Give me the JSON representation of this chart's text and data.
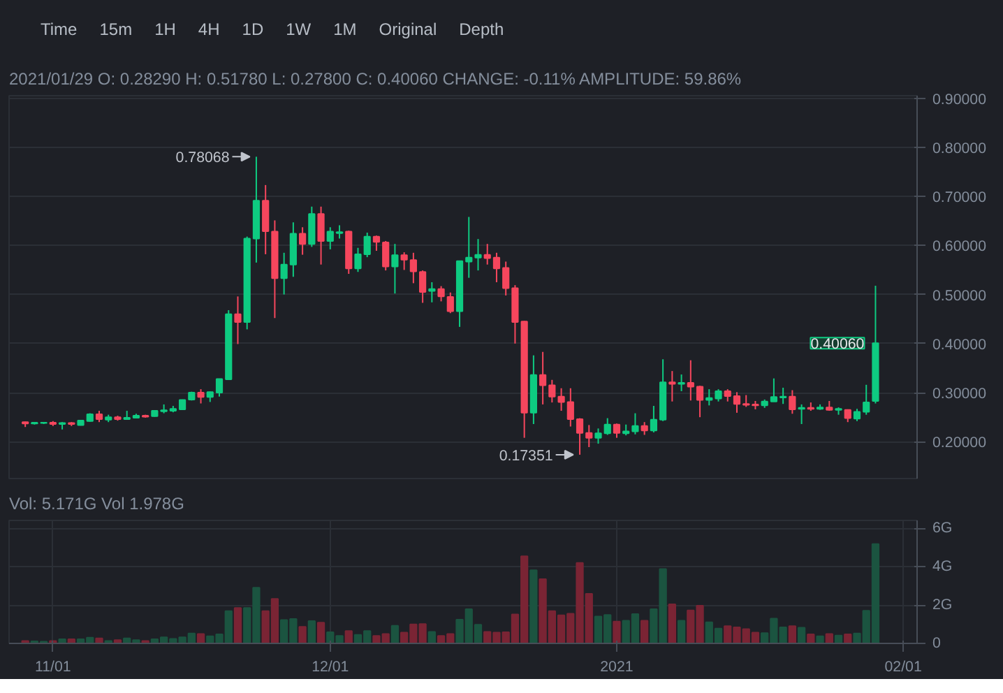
{
  "chart_data": [
    {
      "type": "candlestick",
      "subtitle": "2021/01/29 O: 0.28290 H: 0.51780 L: 0.27800 C: 0.40060 CHANGE: -0.11% AMPLITUDE: 59.86%",
      "annotations": [
        "Time",
        "15m",
        "1H",
        "4H",
        "1D",
        "1W",
        "1M",
        "Original",
        "Depth",
        {
          "text": "0.78068",
          "x": "2020-11-23",
          "y": 0.78068
        },
        {
          "text": "0.17351",
          "x": "2020-12-28",
          "y": 0.17351
        },
        {
          "text": "0.40060",
          "x": "2021-01-29",
          "y": 0.4006
        }
      ],
      "x": [
        "2020-10-29",
        "2020-10-30",
        "2020-10-31",
        "2020-11-01",
        "2020-11-02",
        "2020-11-03",
        "2020-11-04",
        "2020-11-05",
        "2020-11-06",
        "2020-11-07",
        "2020-11-08",
        "2020-11-09",
        "2020-11-10",
        "2020-11-11",
        "2020-11-12",
        "2020-11-13",
        "2020-11-14",
        "2020-11-15",
        "2020-11-16",
        "2020-11-17",
        "2020-11-18",
        "2020-11-19",
        "2020-11-20",
        "2020-11-21",
        "2020-11-22",
        "2020-11-23",
        "2020-11-24",
        "2020-11-25",
        "2020-11-26",
        "2020-11-27",
        "2020-11-28",
        "2020-11-29",
        "2020-11-30",
        "2020-12-01",
        "2020-12-02",
        "2020-12-03",
        "2020-12-04",
        "2020-12-05",
        "2020-12-06",
        "2020-12-07",
        "2020-12-08",
        "2020-12-09",
        "2020-12-10",
        "2020-12-11",
        "2020-12-12",
        "2020-12-13",
        "2020-12-14",
        "2020-12-15",
        "2020-12-16",
        "2020-12-17",
        "2020-12-18",
        "2020-12-19",
        "2020-12-20",
        "2020-12-21",
        "2020-12-22",
        "2020-12-23",
        "2020-12-24",
        "2020-12-25",
        "2020-12-26",
        "2020-12-27",
        "2020-12-28",
        "2020-12-29",
        "2020-12-30",
        "2020-12-31",
        "2021-01-01",
        "2021-01-02",
        "2021-01-03",
        "2021-01-04",
        "2021-01-05",
        "2021-01-06",
        "2021-01-07",
        "2021-01-08",
        "2021-01-09",
        "2021-01-10",
        "2021-01-11",
        "2021-01-12",
        "2021-01-13",
        "2021-01-14",
        "2021-01-15",
        "2021-01-16",
        "2021-01-17",
        "2021-01-18",
        "2021-01-19",
        "2021-01-20",
        "2021-01-21",
        "2021-01-22",
        "2021-01-23",
        "2021-01-24",
        "2021-01-25",
        "2021-01-26",
        "2021-01-27",
        "2021-01-28",
        "2021-01-29"
      ],
      "ohlc": [
        [
          0.24,
          0.241,
          0.23,
          0.237
        ],
        [
          0.237,
          0.24,
          0.235,
          0.239
        ],
        [
          0.238,
          0.24,
          0.236,
          0.239
        ],
        [
          0.239,
          0.242,
          0.232,
          0.236
        ],
        [
          0.236,
          0.24,
          0.225,
          0.238
        ],
        [
          0.238,
          0.24,
          0.232,
          0.236
        ],
        [
          0.234,
          0.243,
          0.233,
          0.243
        ],
        [
          0.242,
          0.258,
          0.241,
          0.256
        ],
        [
          0.256,
          0.263,
          0.24,
          0.246
        ],
        [
          0.245,
          0.255,
          0.24,
          0.25
        ],
        [
          0.25,
          0.253,
          0.243,
          0.246
        ],
        [
          0.246,
          0.263,
          0.245,
          0.249
        ],
        [
          0.249,
          0.257,
          0.248,
          0.253
        ],
        [
          0.253,
          0.255,
          0.249,
          0.251
        ],
        [
          0.252,
          0.263,
          0.251,
          0.263
        ],
        [
          0.262,
          0.276,
          0.258,
          0.264
        ],
        [
          0.263,
          0.273,
          0.26,
          0.267
        ],
        [
          0.266,
          0.286,
          0.265,
          0.285
        ],
        [
          0.286,
          0.302,
          0.284,
          0.3
        ],
        [
          0.3,
          0.307,
          0.278,
          0.291
        ],
        [
          0.291,
          0.302,
          0.281,
          0.301
        ],
        [
          0.3,
          0.328,
          0.292,
          0.328
        ],
        [
          0.327,
          0.468,
          0.326,
          0.46
        ],
        [
          0.46,
          0.496,
          0.399,
          0.444
        ],
        [
          0.444,
          0.618,
          0.429,
          0.614
        ],
        [
          0.614,
          0.78068,
          0.565,
          0.691
        ],
        [
          0.691,
          0.723,
          0.582,
          0.629
        ],
        [
          0.628,
          0.651,
          0.452,
          0.533
        ],
        [
          0.533,
          0.585,
          0.5,
          0.561
        ],
        [
          0.561,
          0.647,
          0.536,
          0.624
        ],
        [
          0.624,
          0.637,
          0.581,
          0.603
        ],
        [
          0.603,
          0.679,
          0.597,
          0.664
        ],
        [
          0.664,
          0.679,
          0.561,
          0.609
        ],
        [
          0.609,
          0.637,
          0.592,
          0.628
        ],
        [
          0.625,
          0.641,
          0.614,
          0.627
        ],
        [
          0.628,
          0.63,
          0.542,
          0.553
        ],
        [
          0.553,
          0.595,
          0.546,
          0.582
        ],
        [
          0.582,
          0.626,
          0.576,
          0.618
        ],
        [
          0.618,
          0.62,
          0.589,
          0.607
        ],
        [
          0.606,
          0.609,
          0.549,
          0.557
        ],
        [
          0.557,
          0.603,
          0.502,
          0.58
        ],
        [
          0.58,
          0.586,
          0.55,
          0.571
        ],
        [
          0.57,
          0.585,
          0.523,
          0.547
        ],
        [
          0.546,
          0.549,
          0.483,
          0.505
        ],
        [
          0.507,
          0.525,
          0.484,
          0.511
        ],
        [
          0.511,
          0.517,
          0.486,
          0.496
        ],
        [
          0.495,
          0.504,
          0.462,
          0.466
        ],
        [
          0.466,
          0.568,
          0.434,
          0.568
        ],
        [
          0.567,
          0.658,
          0.534,
          0.575
        ],
        [
          0.575,
          0.613,
          0.549,
          0.581
        ],
        [
          0.581,
          0.603,
          0.561,
          0.574
        ],
        [
          0.575,
          0.585,
          0.525,
          0.553
        ],
        [
          0.554,
          0.567,
          0.498,
          0.513
        ],
        [
          0.513,
          0.519,
          0.4,
          0.444
        ],
        [
          0.445,
          0.446,
          0.208,
          0.259
        ],
        [
          0.259,
          0.376,
          0.236,
          0.336
        ],
        [
          0.336,
          0.383,
          0.276,
          0.315
        ],
        [
          0.315,
          0.326,
          0.28,
          0.292
        ],
        [
          0.292,
          0.309,
          0.263,
          0.281
        ],
        [
          0.281,
          0.309,
          0.231,
          0.246
        ],
        [
          0.246,
          0.248,
          0.17351,
          0.218
        ],
        [
          0.218,
          0.234,
          0.189,
          0.208
        ],
        [
          0.208,
          0.227,
          0.196,
          0.217
        ],
        [
          0.217,
          0.248,
          0.214,
          0.235
        ],
        [
          0.235,
          0.237,
          0.208,
          0.218
        ],
        [
          0.217,
          0.235,
          0.213,
          0.221
        ],
        [
          0.221,
          0.258,
          0.215,
          0.232
        ],
        [
          0.232,
          0.24,
          0.214,
          0.223
        ],
        [
          0.223,
          0.273,
          0.219,
          0.245
        ],
        [
          0.245,
          0.368,
          0.242,
          0.321
        ],
        [
          0.321,
          0.344,
          0.282,
          0.318
        ],
        [
          0.318,
          0.337,
          0.303,
          0.32
        ],
        [
          0.32,
          0.366,
          0.284,
          0.312
        ],
        [
          0.312,
          0.314,
          0.25,
          0.285
        ],
        [
          0.285,
          0.307,
          0.274,
          0.289
        ],
        [
          0.288,
          0.307,
          0.282,
          0.303
        ],
        [
          0.303,
          0.307,
          0.282,
          0.293
        ],
        [
          0.293,
          0.301,
          0.259,
          0.277
        ],
        [
          0.277,
          0.295,
          0.271,
          0.275
        ],
        [
          0.276,
          0.283,
          0.266,
          0.274
        ],
        [
          0.274,
          0.286,
          0.269,
          0.282
        ],
        [
          0.282,
          0.329,
          0.282,
          0.291
        ],
        [
          0.29,
          0.31,
          0.277,
          0.292
        ],
        [
          0.292,
          0.305,
          0.257,
          0.266
        ],
        [
          0.267,
          0.276,
          0.236,
          0.269
        ],
        [
          0.269,
          0.28,
          0.263,
          0.267
        ],
        [
          0.267,
          0.276,
          0.265,
          0.27
        ],
        [
          0.27,
          0.283,
          0.263,
          0.265
        ],
        [
          0.265,
          0.27,
          0.255,
          0.267
        ],
        [
          0.265,
          0.266,
          0.24,
          0.248
        ],
        [
          0.247,
          0.267,
          0.242,
          0.261
        ],
        [
          0.261,
          0.316,
          0.255,
          0.28
        ],
        [
          0.2829,
          0.5178,
          0.278,
          0.4006
        ]
      ],
      "colors": [
        "#f6465d",
        "#0ecb81",
        "#0ecb81",
        "#f6465d",
        "#0ecb81",
        "#f6465d",
        "#0ecb81",
        "#0ecb81",
        "#f6465d",
        "#0ecb81",
        "#f6465d",
        "#0ecb81",
        "#0ecb81",
        "#f6465d",
        "#0ecb81",
        "#0ecb81",
        "#0ecb81",
        "#0ecb81",
        "#0ecb81",
        "#f6465d",
        "#0ecb81",
        "#0ecb81",
        "#0ecb81",
        "#f6465d",
        "#0ecb81",
        "#0ecb81",
        "#f6465d",
        "#f6465d",
        "#0ecb81",
        "#0ecb81",
        "#f6465d",
        "#0ecb81",
        "#f6465d",
        "#0ecb81",
        "#0ecb81",
        "#f6465d",
        "#0ecb81",
        "#0ecb81",
        "#f6465d",
        "#f6465d",
        "#0ecb81",
        "#f6465d",
        "#f6465d",
        "#f6465d",
        "#0ecb81",
        "#f6465d",
        "#f6465d",
        "#0ecb81",
        "#0ecb81",
        "#0ecb81",
        "#f6465d",
        "#f6465d",
        "#f6465d",
        "#f6465d",
        "#f6465d",
        "#0ecb81",
        "#f6465d",
        "#f6465d",
        "#f6465d",
        "#f6465d",
        "#f6465d",
        "#f6465d",
        "#0ecb81",
        "#0ecb81",
        "#f6465d",
        "#0ecb81",
        "#0ecb81",
        "#f6465d",
        "#0ecb81",
        "#0ecb81",
        "#f6465d",
        "#0ecb81",
        "#f6465d",
        "#f6465d",
        "#0ecb81",
        "#0ecb81",
        "#f6465d",
        "#f6465d",
        "#f6465d",
        "#f6465d",
        "#0ecb81",
        "#0ecb81",
        "#0ecb81",
        "#f6465d",
        "#0ecb81",
        "#f6465d",
        "#0ecb81",
        "#f6465d",
        "#0ecb81",
        "#f6465d",
        "#0ecb81",
        "#0ecb81",
        "#0ecb81"
      ],
      "xlim": [
        "2020-10-27T06:00",
        "2021-02-02T12:00"
      ],
      "ylim": [
        0.125,
        0.905
      ],
      "yticks": [
        {
          "value": 0.2,
          "label": "0.20000"
        },
        {
          "value": 0.3,
          "label": "0.30000"
        },
        {
          "value": 0.4,
          "label": "0.40000"
        },
        {
          "value": 0.5,
          "label": "0.50000"
        },
        {
          "value": 0.6,
          "label": "0.60000"
        },
        {
          "value": 0.7,
          "label": "0.70000"
        },
        {
          "value": 0.8,
          "label": "0.80000"
        },
        {
          "value": 0.9,
          "label": "0.90000"
        }
      ],
      "grid": true,
      "tick_labels": "y"
    },
    {
      "type": "bar",
      "title": "Vol: 5.171G  Vol 1.978G",
      "x": [
        "2020-10-29",
        "2020-10-30",
        "2020-10-31",
        "2020-11-01",
        "2020-11-02",
        "2020-11-03",
        "2020-11-04",
        "2020-11-05",
        "2020-11-06",
        "2020-11-07",
        "2020-11-08",
        "2020-11-09",
        "2020-11-10",
        "2020-11-11",
        "2020-11-12",
        "2020-11-13",
        "2020-11-14",
        "2020-11-15",
        "2020-11-16",
        "2020-11-17",
        "2020-11-18",
        "2020-11-19",
        "2020-11-20",
        "2020-11-21",
        "2020-11-22",
        "2020-11-23",
        "2020-11-24",
        "2020-11-25",
        "2020-11-26",
        "2020-11-27",
        "2020-11-28",
        "2020-11-29",
        "2020-11-30",
        "2020-12-01",
        "2020-12-02",
        "2020-12-03",
        "2020-12-04",
        "2020-12-05",
        "2020-12-06",
        "2020-12-07",
        "2020-12-08",
        "2020-12-09",
        "2020-12-10",
        "2020-12-11",
        "2020-12-12",
        "2020-12-13",
        "2020-12-14",
        "2020-12-15",
        "2020-12-16",
        "2020-12-17",
        "2020-12-18",
        "2020-12-19",
        "2020-12-20",
        "2020-12-21",
        "2020-12-22",
        "2020-12-23",
        "2020-12-24",
        "2020-12-25",
        "2020-12-26",
        "2020-12-27",
        "2020-12-28",
        "2020-12-29",
        "2020-12-30",
        "2020-12-31",
        "2021-01-01",
        "2021-01-02",
        "2021-01-03",
        "2021-01-04",
        "2021-01-05",
        "2021-01-06",
        "2021-01-07",
        "2021-01-08",
        "2021-01-09",
        "2021-01-10",
        "2021-01-11",
        "2021-01-12",
        "2021-01-13",
        "2021-01-14",
        "2021-01-15",
        "2021-01-16",
        "2021-01-17",
        "2021-01-18",
        "2021-01-19",
        "2021-01-20",
        "2021-01-21",
        "2021-01-22",
        "2021-01-23",
        "2021-01-24",
        "2021-01-25",
        "2021-01-26",
        "2021-01-27",
        "2021-01-28",
        "2021-01-29"
      ],
      "values": [
        0.13,
        0.11,
        0.09,
        0.13,
        0.22,
        0.22,
        0.22,
        0.3,
        0.26,
        0.13,
        0.17,
        0.26,
        0.17,
        0.13,
        0.22,
        0.32,
        0.24,
        0.32,
        0.52,
        0.49,
        0.37,
        0.47,
        1.68,
        1.85,
        1.85,
        2.9,
        1.68,
        2.32,
        1.22,
        1.27,
        0.86,
        1.16,
        1.08,
        0.58,
        0.39,
        0.65,
        0.45,
        0.65,
        0.39,
        0.49,
        0.92,
        0.56,
        0.99,
        1.01,
        0.6,
        0.39,
        0.49,
        1.24,
        1.78,
        0.97,
        0.6,
        0.56,
        0.58,
        1.51,
        4.54,
        3.81,
        3.35,
        1.68,
        1.46,
        1.55,
        4.19,
        2.58,
        1.4,
        1.48,
        1.14,
        1.18,
        1.53,
        1.18,
        1.78,
        3.87,
        2.04,
        1.18,
        1.72,
        1.96,
        1.1,
        0.77,
        0.9,
        0.84,
        0.75,
        0.56,
        0.54,
        1.29,
        0.84,
        0.9,
        0.82,
        0.47,
        0.37,
        0.49,
        0.41,
        0.47,
        0.52,
        1.7,
        5.17
      ],
      "colors": [
        "#7a2434",
        "#1b5440",
        "#1b5440",
        "#7a2434",
        "#1b5440",
        "#7a2434",
        "#1b5440",
        "#1b5440",
        "#7a2434",
        "#1b5440",
        "#7a2434",
        "#1b5440",
        "#1b5440",
        "#7a2434",
        "#1b5440",
        "#1b5440",
        "#1b5440",
        "#1b5440",
        "#1b5440",
        "#7a2434",
        "#1b5440",
        "#1b5440",
        "#1b5440",
        "#7a2434",
        "#1b5440",
        "#1b5440",
        "#7a2434",
        "#7a2434",
        "#1b5440",
        "#1b5440",
        "#7a2434",
        "#1b5440",
        "#7a2434",
        "#1b5440",
        "#1b5440",
        "#7a2434",
        "#1b5440",
        "#1b5440",
        "#7a2434",
        "#7a2434",
        "#1b5440",
        "#7a2434",
        "#7a2434",
        "#7a2434",
        "#1b5440",
        "#7a2434",
        "#7a2434",
        "#1b5440",
        "#1b5440",
        "#1b5440",
        "#7a2434",
        "#7a2434",
        "#7a2434",
        "#7a2434",
        "#7a2434",
        "#1b5440",
        "#7a2434",
        "#7a2434",
        "#7a2434",
        "#7a2434",
        "#7a2434",
        "#7a2434",
        "#1b5440",
        "#1b5440",
        "#7a2434",
        "#1b5440",
        "#1b5440",
        "#7a2434",
        "#1b5440",
        "#1b5440",
        "#7a2434",
        "#1b5440",
        "#7a2434",
        "#7a2434",
        "#1b5440",
        "#1b5440",
        "#7a2434",
        "#7a2434",
        "#7a2434",
        "#7a2434",
        "#1b5440",
        "#1b5440",
        "#1b5440",
        "#7a2434",
        "#1b5440",
        "#7a2434",
        "#1b5440",
        "#7a2434",
        "#1b5440",
        "#7a2434",
        "#1b5440",
        "#1b5440",
        "#1b5440"
      ],
      "xlim": [
        "2020-10-27T06:00",
        "2021-02-02T12:00"
      ],
      "xticks": [
        {
          "value": "2020-11-01",
          "label": "11/01"
        },
        {
          "value": "2020-12-01",
          "label": "12/01"
        },
        {
          "value": "2021-01-01",
          "label": "2021"
        },
        {
          "value": "2021-02-01",
          "label": "02/01"
        }
      ],
      "ylim": [
        0,
        6.4
      ],
      "yticks": [
        0,
        {
          "value": 2,
          "label": "2G"
        },
        {
          "value": 4,
          "label": "4G"
        },
        {
          "value": 6,
          "label": "6G"
        }
      ],
      "grid": true
    }
  ]
}
